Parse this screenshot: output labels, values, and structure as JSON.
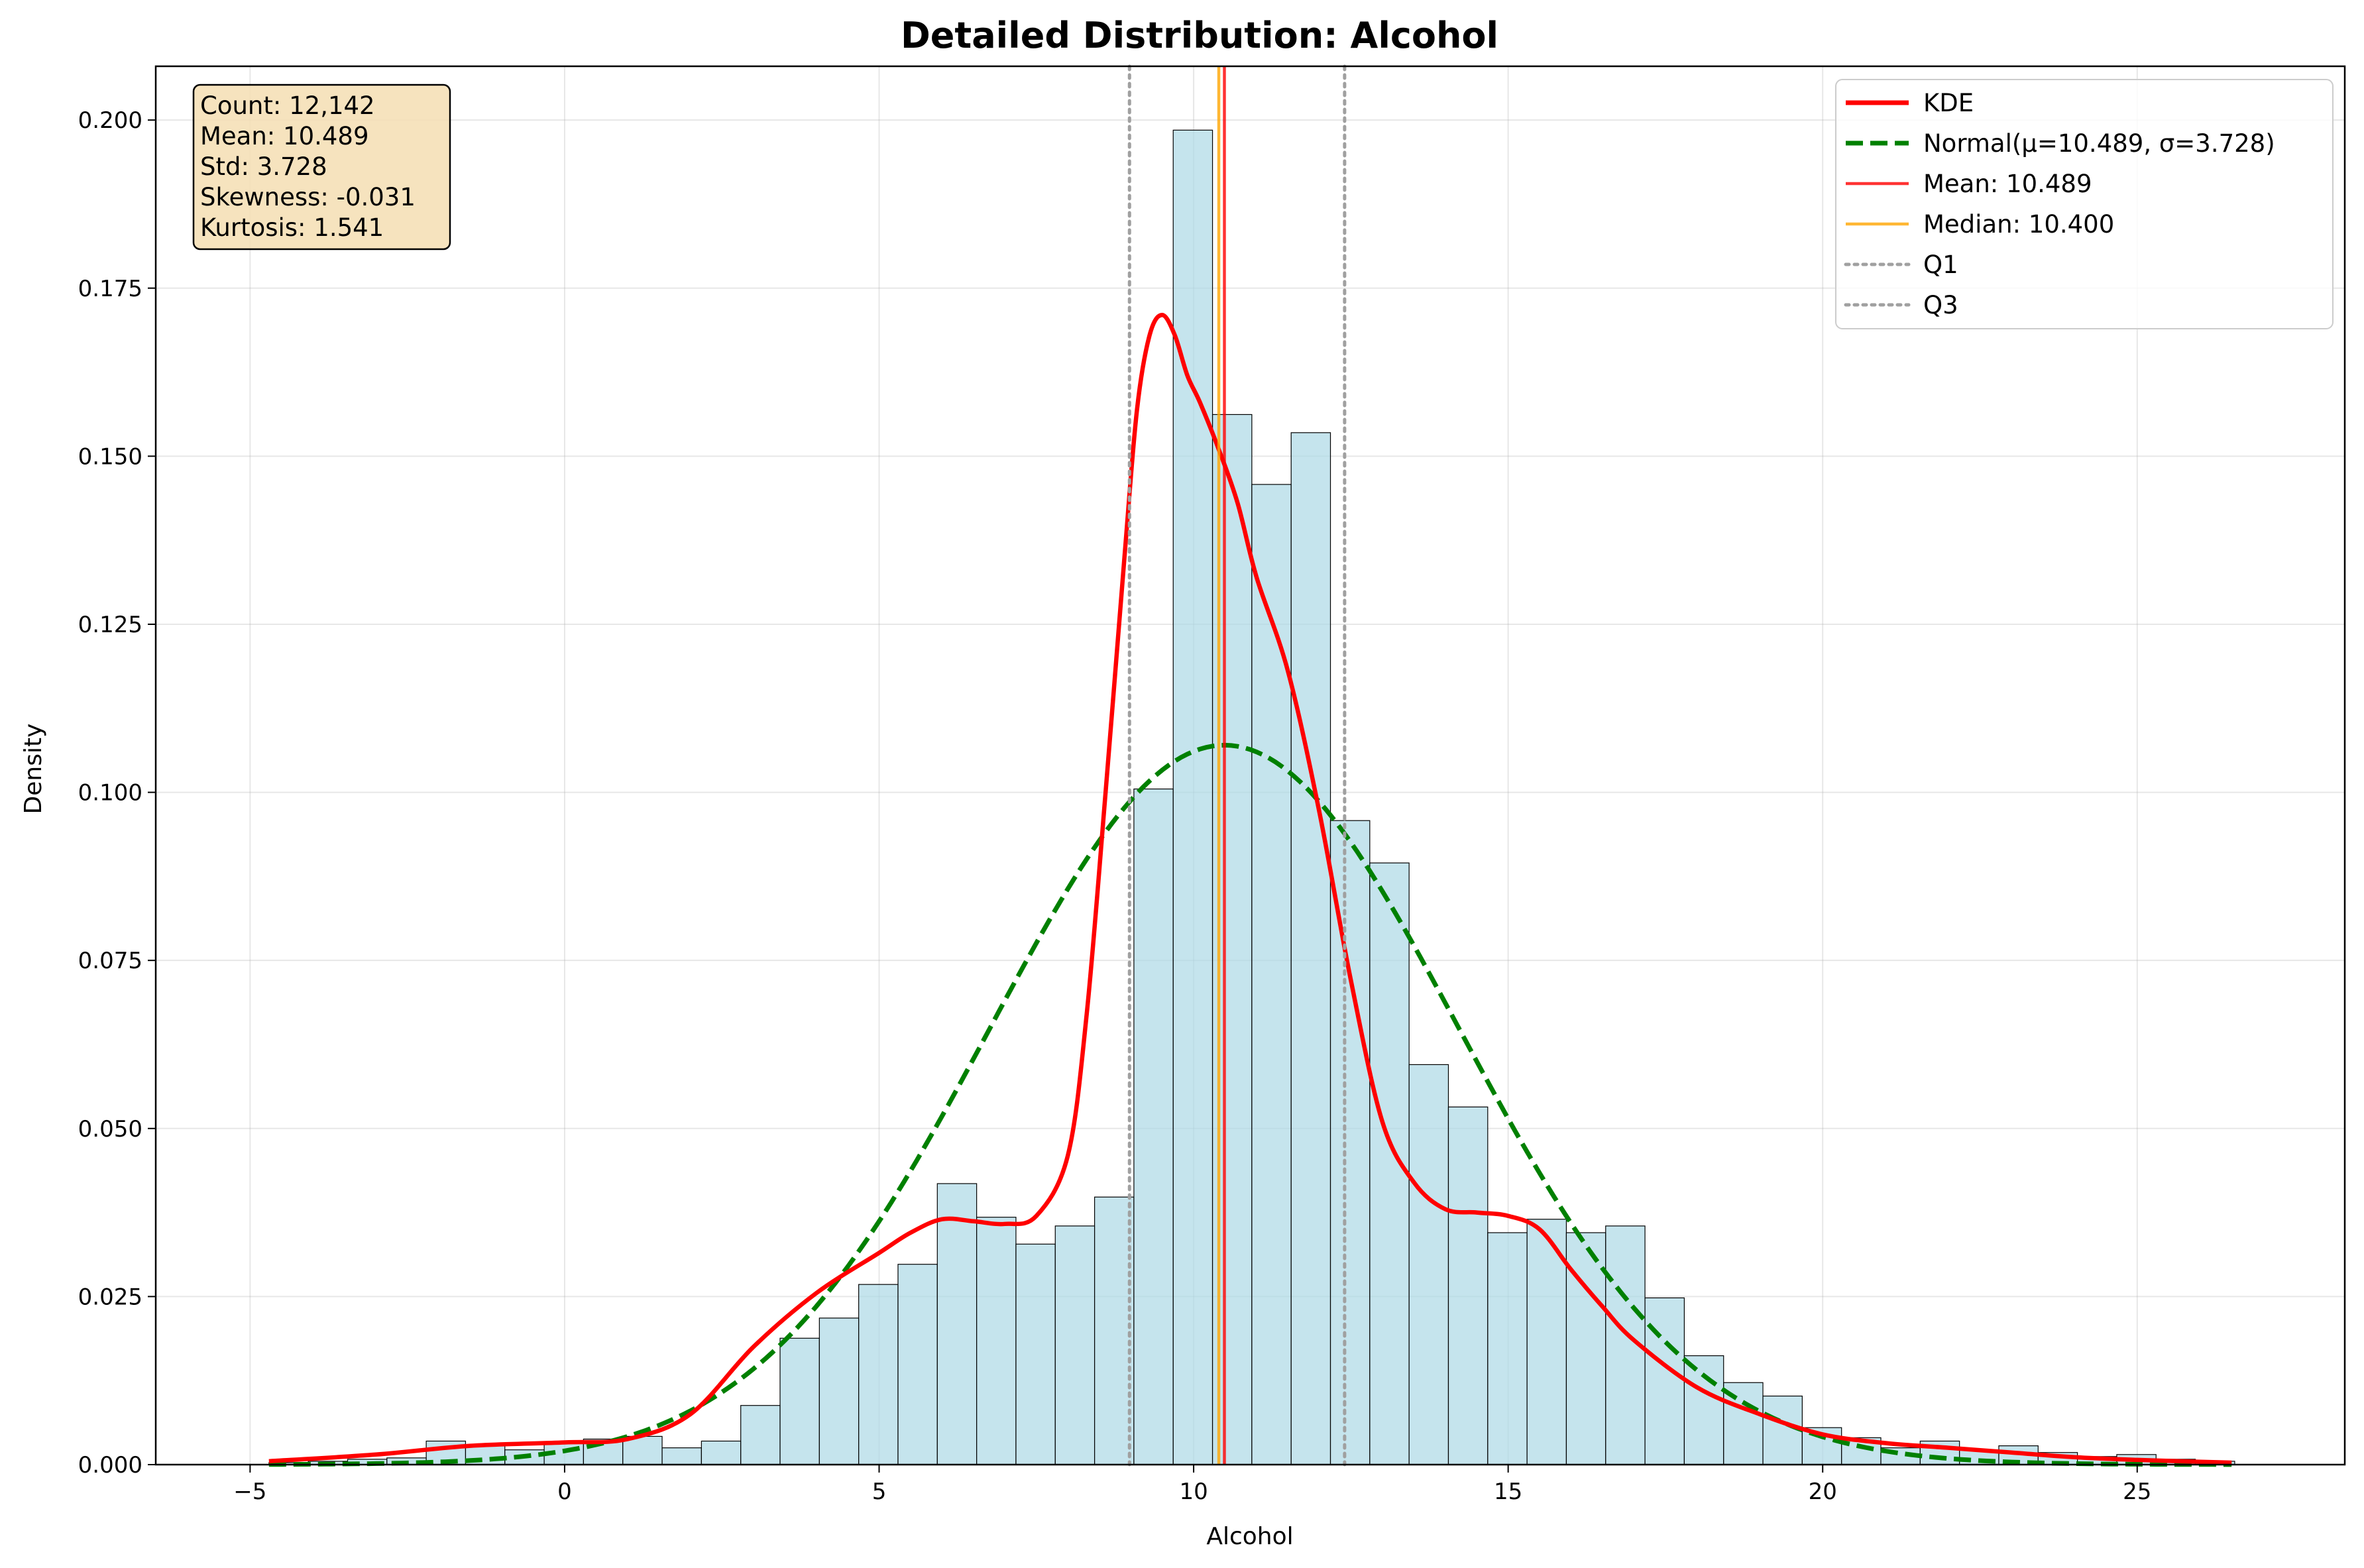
{
  "chart_data": {
    "type": "bar",
    "title": "Detailed Distribution: Alcohol",
    "xlabel": "Alcohol",
    "ylabel": "Density",
    "xlim": [
      -6.5,
      28.3
    ],
    "ylim": [
      0,
      0.208
    ],
    "x_ticks": [
      -5,
      0,
      5,
      10,
      15,
      20,
      25
    ],
    "x_tick_labels": [
      "−5",
      "0",
      "5",
      "10",
      "15",
      "20",
      "25"
    ],
    "y_ticks": [
      0,
      0.025,
      0.05,
      0.075,
      0.1,
      0.125,
      0.15,
      0.175,
      0.2
    ],
    "y_tick_labels": [
      "0.000",
      "0.025",
      "0.050",
      "0.075",
      "0.100",
      "0.125",
      "0.150",
      "0.175",
      "0.200"
    ],
    "grid": true,
    "legend_position": "top-right",
    "histogram": {
      "bin_start": -4.7,
      "bin_width": 0.625,
      "values": [
        0.0003,
        0.0005,
        0.0008,
        0.001,
        0.0035,
        0.0028,
        0.0022,
        0.0032,
        0.0038,
        0.0042,
        0.0025,
        0.0035,
        0.0088,
        0.0188,
        0.0218,
        0.0268,
        0.0298,
        0.0418,
        0.0368,
        0.0328,
        0.0355,
        0.0398,
        0.1005,
        0.1985,
        0.1562,
        0.1458,
        0.1535,
        0.0958,
        0.0895,
        0.0595,
        0.0532,
        0.0345,
        0.0365,
        0.0345,
        0.0355,
        0.0248,
        0.0162,
        0.0122,
        0.0102,
        0.0055,
        0.004,
        0.0025,
        0.0035,
        0.0022,
        0.0028,
        0.0018,
        0.0012,
        0.0015,
        0.0008,
        0.0005
      ],
      "fill": "#add8e6",
      "edge": "#000000"
    },
    "series": [
      {
        "name": "KDE",
        "color": "#ff0000",
        "x": [
          -4.7,
          -3,
          -1.5,
          0,
          1,
          2,
          3,
          4,
          5,
          5.5,
          6,
          6.5,
          7,
          7.5,
          8,
          8.3,
          8.6,
          8.9,
          9.1,
          9.3,
          9.5,
          9.7,
          9.9,
          10.1,
          10.4,
          10.7,
          11,
          11.5,
          12,
          12.5,
          13,
          13.5,
          14,
          14.5,
          15,
          15.5,
          16,
          16.5,
          17,
          18,
          19,
          20,
          21,
          22,
          23,
          24,
          25,
          26.5
        ],
        "y": [
          0.0005,
          0.0015,
          0.0028,
          0.0033,
          0.0038,
          0.0075,
          0.0175,
          0.0255,
          0.0315,
          0.0345,
          0.0365,
          0.0362,
          0.0358,
          0.037,
          0.046,
          0.067,
          0.1,
          0.135,
          0.157,
          0.168,
          0.171,
          0.168,
          0.162,
          0.158,
          0.151,
          0.143,
          0.132,
          0.118,
          0.097,
          0.072,
          0.051,
          0.042,
          0.038,
          0.0375,
          0.037,
          0.035,
          0.029,
          0.0235,
          0.0185,
          0.0115,
          0.0075,
          0.0045,
          0.0032,
          0.0025,
          0.0018,
          0.0011,
          0.0007,
          0.0003
        ]
      },
      {
        "name": "Normal(μ=10.489, σ=3.728)",
        "color": "#008000",
        "dashed": true,
        "mu": 10.489,
        "sigma": 3.728,
        "x_range": [
          -4.7,
          26.5
        ]
      }
    ],
    "reference_lines": [
      {
        "name": "Mean: 10.489",
        "x": 10.489,
        "color": "#ff0000",
        "style": "solid"
      },
      {
        "name": "Median: 10.400",
        "x": 10.4,
        "color": "#ffa500",
        "style": "solid"
      },
      {
        "name": "Q1",
        "x": 8.98,
        "color": "#a0a0a0",
        "style": "dotted"
      },
      {
        "name": "Q3",
        "x": 12.4,
        "color": "#a0a0a0",
        "style": "dotted"
      }
    ],
    "stats_box": [
      "Count: 12,142",
      "Mean: 10.489",
      "Std: 3.728",
      "Skewness: -0.031",
      "Kurtosis: 1.541"
    ],
    "stats_box_fill": "#f5deb3",
    "legend": [
      {
        "label": "KDE",
        "color": "#ff0000",
        "style": "solid-thick"
      },
      {
        "label": "Normal(μ=10.489, σ=3.728)",
        "color": "#008000",
        "style": "dashed"
      },
      {
        "label": "Mean: 10.489",
        "color": "#ff0000",
        "style": "solid"
      },
      {
        "label": "Median: 10.400",
        "color": "#ffa500",
        "style": "solid"
      },
      {
        "label": "Q1",
        "color": "#a0a0a0",
        "style": "dotted"
      },
      {
        "label": "Q3",
        "color": "#a0a0a0",
        "style": "dotted"
      }
    ]
  }
}
